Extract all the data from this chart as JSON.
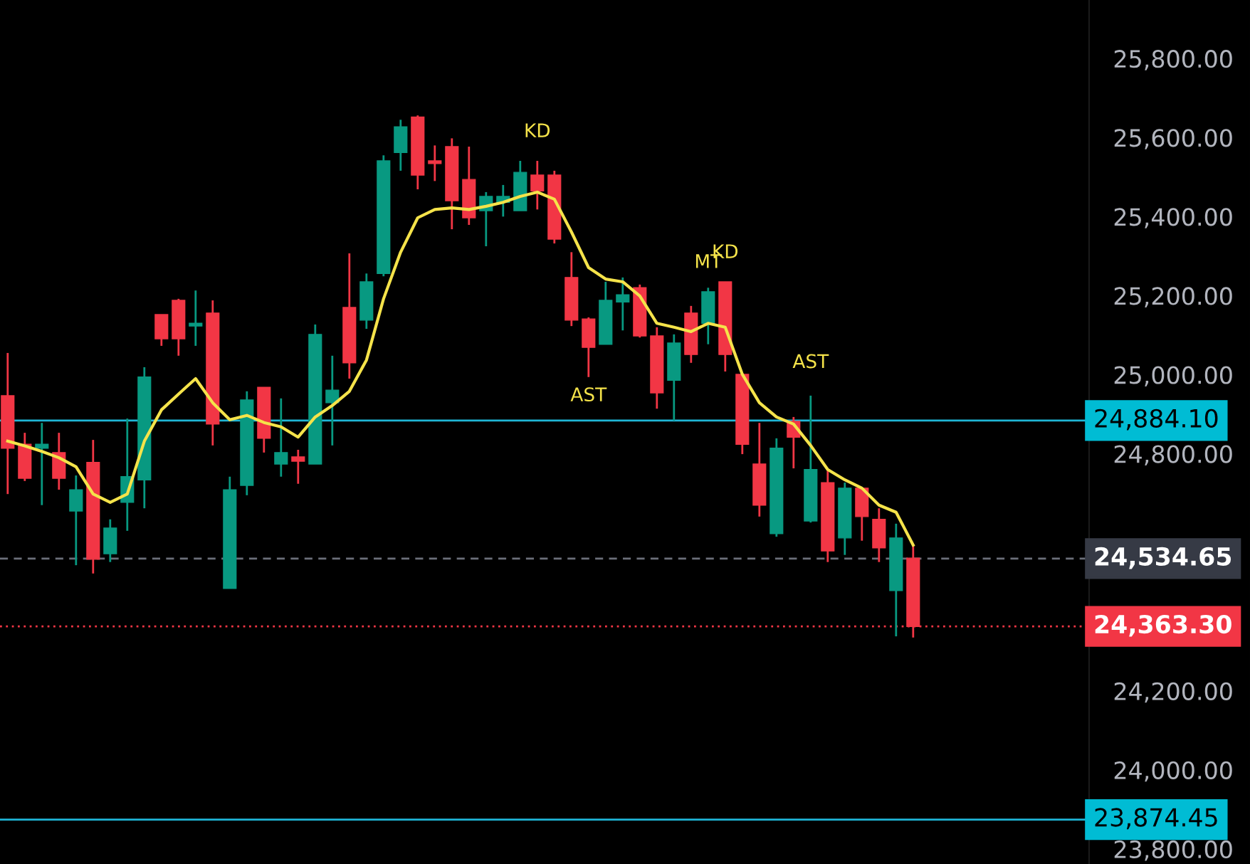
{
  "chart_data": {
    "type": "candlestick",
    "categories": [
      null,
      null,
      null,
      null,
      null,
      null,
      null,
      null,
      null,
      null,
      null,
      null,
      null,
      null,
      null,
      null,
      null,
      null,
      null,
      null,
      null,
      null,
      null,
      null,
      null,
      null,
      null,
      null,
      null,
      null,
      null,
      null,
      null,
      null,
      null,
      null,
      null,
      null,
      null,
      null,
      null,
      null,
      null,
      null,
      null,
      null,
      null,
      null,
      null,
      null,
      null,
      null,
      null,
      null
    ],
    "ohlc": [
      [
        24947,
        25055,
        24698,
        24814
      ],
      [
        24824,
        24853,
        24731,
        24738
      ],
      [
        24814,
        24878,
        24670,
        24824
      ],
      [
        24803,
        24853,
        24709,
        24738
      ],
      [
        24655,
        24745,
        24518,
        24709
      ],
      [
        24778,
        24835,
        24497,
        24533
      ],
      [
        24547,
        24634,
        24526,
        24612
      ],
      [
        24677,
        24889,
        24605,
        24742
      ],
      [
        24734,
        25019,
        24662,
        24994
      ],
      [
        25152,
        25152,
        25073,
        25091
      ],
      [
        25188,
        25192,
        25048,
        25091
      ],
      [
        25123,
        25213,
        25073,
        25130
      ],
      [
        25156,
        25188,
        24821,
        24875
      ],
      [
        24459,
        24742,
        24459,
        24709
      ],
      [
        24720,
        24958,
        24695,
        24936
      ],
      [
        24968,
        24968,
        24803,
        24839
      ],
      [
        24774,
        24940,
        24742,
        24803
      ],
      [
        24792,
        24810,
        24724,
        24781
      ],
      [
        24774,
        25127,
        24774,
        25102
      ],
      [
        24929,
        25048,
        24821,
        24961
      ],
      [
        25170,
        25307,
        24990,
        25030
      ],
      [
        25138,
        25256,
        25116,
        25235
      ],
      [
        25256,
        25555,
        25249,
        25541
      ],
      [
        25562,
        25645,
        25516,
        25627
      ],
      [
        25652,
        25656,
        25469,
        25505
      ],
      [
        25541,
        25580,
        25490,
        25534
      ],
      [
        25577,
        25598,
        25368,
        25440
      ],
      [
        25494,
        25577,
        25379,
        25397
      ],
      [
        25415,
        25462,
        25325,
        25451
      ],
      [
        25436,
        25480,
        25400,
        25451
      ],
      [
        25415,
        25541,
        25415,
        25512
      ],
      [
        25505,
        25541,
        25418,
        25465
      ],
      [
        25505,
        25516,
        25332,
        25343
      ],
      [
        25246,
        25310,
        25123,
        25138
      ],
      [
        25141,
        25145,
        24994,
        25069
      ],
      [
        25077,
        25235,
        25077,
        25188
      ],
      [
        25184,
        25246,
        25112,
        25202
      ],
      [
        25220,
        25228,
        25094,
        25098
      ],
      [
        25098,
        25120,
        24914,
        24954
      ],
      [
        24986,
        25102,
        24884,
        25080
      ],
      [
        25156,
        25174,
        25030,
        25051
      ],
      [
        25130,
        25220,
        25077,
        25210
      ],
      [
        25235,
        25235,
        25008,
        25051
      ],
      [
        25001,
        25001,
        24799,
        24824
      ],
      [
        24774,
        24878,
        24641,
        24670
      ],
      [
        24598,
        24839,
        24590,
        24814
      ],
      [
        24882,
        24893,
        24763,
        24842
      ],
      [
        24630,
        24947,
        24626,
        24760
      ],
      [
        24727,
        24760,
        24526,
        24554
      ],
      [
        24587,
        24727,
        24544,
        24713
      ],
      [
        24713,
        24713,
        24580,
        24641
      ],
      [
        24634,
        24662,
        24526,
        24562
      ],
      [
        24454,
        24623,
        24338,
        24587
      ],
      [
        24536,
        24569,
        24335,
        24363
      ]
    ],
    "colors": [
      "#f23645",
      "#f23645",
      "#089981",
      "#f23645",
      "#089981",
      "#f23645",
      "#089981",
      "#089981",
      "#089981",
      "#f23645",
      "#f23645",
      "#089981",
      "#f23645",
      "#089981",
      "#089981",
      "#f23645",
      "#089981",
      "#f23645",
      "#089981",
      "#089981",
      "#f23645",
      "#089981",
      "#089981",
      "#089981",
      "#f23645",
      "#f23645",
      "#f23645",
      "#f23645",
      "#089981",
      "#089981",
      "#089981",
      "#f23645",
      "#f23645",
      "#f23645",
      "#f23645",
      "#089981",
      "#089981",
      "#f23645",
      "#f23645",
      "#089981",
      "#f23645",
      "#089981",
      "#f23645",
      "#f23645",
      "#f23645",
      "#089981",
      "#f23645",
      "#089981",
      "#f23645",
      "#089981",
      "#f23645",
      "#f23645",
      "#089981",
      "#f23645"
    ],
    "series": [
      {
        "type": "line",
        "color": "#f5e34a",
        "values": [
          24832,
          24820,
          24806,
          24790,
          24767,
          24698,
          24677,
          24698,
          24832,
          24911,
          24951,
          24990,
          24929,
          24886,
          24897,
          24879,
          24868,
          24842,
          24893,
          24922,
          24958,
          25037,
          25192,
          25310,
          25397,
          25418,
          25422,
          25418,
          25426,
          25436,
          25451,
          25462,
          25444,
          25361,
          25271,
          25242,
          25235,
          25199,
          25130,
          25120,
          25109,
          25130,
          25120,
          25001,
          24929,
          24893,
          24875,
          24821,
          24760,
          24734,
          24713,
          24670,
          24652,
          24569
        ]
      }
    ],
    "ylim": [
      23762,
      25948
    ],
    "yticks": [
      {
        "value": 23800,
        "label": "23,800.00"
      },
      {
        "value": 24000,
        "label": "24,000.00"
      },
      {
        "value": 24200,
        "label": "24,200.00"
      },
      {
        "value": 24800,
        "label": "24,800.00"
      },
      {
        "value": 25000,
        "label": "25,000.00"
      },
      {
        "value": 25200,
        "label": "25,200.00"
      },
      {
        "value": 25400,
        "label": "25,400.00"
      },
      {
        "value": 25600,
        "label": "25,600.00"
      },
      {
        "value": 25800,
        "label": "25,800.00"
      }
    ],
    "ref_lines": [
      {
        "axis": "y",
        "value": 24884.1,
        "label": "24,884.10",
        "color": "#1fb5d6",
        "line_style": "solid"
      },
      {
        "axis": "y",
        "value": 23874.45,
        "label": "23,874.45",
        "color": "#1fb5d6",
        "line_style": "solid"
      },
      {
        "axis": "y",
        "value": 24534.65,
        "label": "24,534.65",
        "color": "#6b6f7a",
        "line_style": "dashed"
      },
      {
        "axis": "y",
        "value": 24363.3,
        "label": "24,363.30",
        "color": "#f23645",
        "line_style": "dotted"
      }
    ],
    "annotations": [
      "KD",
      "AST",
      "MT",
      "KD",
      "AST"
    ],
    "tick_labels": "y",
    "grid": false,
    "legend": false
  }
}
